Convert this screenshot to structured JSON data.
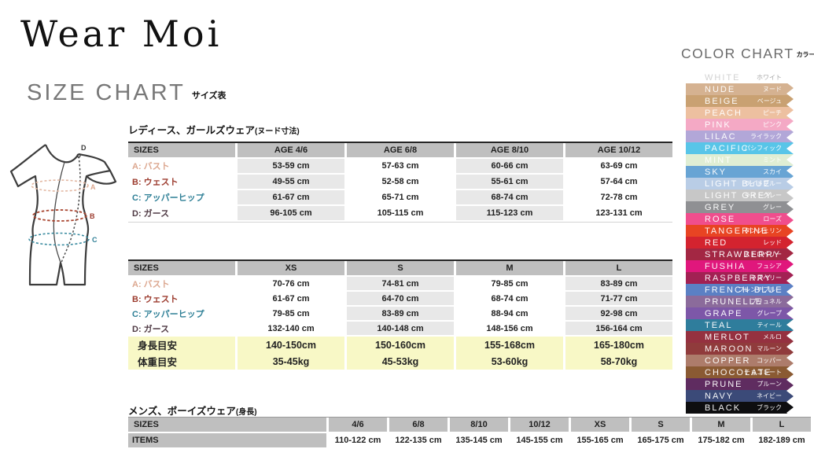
{
  "brand": {
    "logo": "Wear Moi",
    "title": "SIZE CHART",
    "title_jp": "サイズ表"
  },
  "sections": {
    "girls_title": "レディース、ガールズウェア",
    "girls_note": "(ヌード寸法)",
    "mens_title": "メンズ、ボーイズウェア",
    "mens_note": "(身長)"
  },
  "tables": {
    "girls": {
      "header": [
        "SIZES",
        "AGE 4/6",
        "AGE 6/8",
        "AGE 8/10",
        "AGE 10/12"
      ],
      "rows": [
        {
          "label": "A: バスト",
          "color": "#dca78f",
          "values": [
            "53-59 cm",
            "57-63 cm",
            "60-66 cm",
            "63-69 cm"
          ]
        },
        {
          "label": "B: ウェスト",
          "color": "#9c3b2e",
          "values": [
            "49-55 cm",
            "52-58 cm",
            "55-61 cm",
            "57-64 cm"
          ]
        },
        {
          "label": "C: アッパーヒップ",
          "color": "#2e7f96",
          "values": [
            "61-67 cm",
            "65-71 cm",
            "68-74 cm",
            "72-78 cm"
          ]
        },
        {
          "label": "D: ガース",
          "color": "#4f3a44",
          "values": [
            "96-105 cm",
            "105-115 cm",
            "115-123 cm",
            "123-131 cm"
          ]
        }
      ]
    },
    "adults": {
      "header": [
        "SIZES",
        "XS",
        "S",
        "M",
        "L"
      ],
      "rows": [
        {
          "label": "A: バスト",
          "color": "#dca78f",
          "values": [
            "70-76 cm",
            "74-81 cm",
            "79-85 cm",
            "83-89 cm"
          ]
        },
        {
          "label": "B: ウェスト",
          "color": "#9c3b2e",
          "values": [
            "61-67 cm",
            "64-70 cm",
            "68-74 cm",
            "71-77 cm"
          ]
        },
        {
          "label": "C: アッパーヒップ",
          "color": "#2e7f96",
          "values": [
            "79-85 cm",
            "83-89 cm",
            "88-94 cm",
            "92-98 cm"
          ]
        },
        {
          "label": "D: ガース",
          "color": "#4f3a44",
          "values": [
            "132-140 cm",
            "140-148 cm",
            "148-156 cm",
            "156-164 cm"
          ]
        }
      ],
      "highlight_rows": [
        {
          "label": "身長目安",
          "values": [
            "140-150cm",
            "150-160cm",
            "155-168cm",
            "165-180cm"
          ]
        },
        {
          "label": "体重目安",
          "values": [
            "35-45kg",
            "45-53kg",
            "53-60kg",
            "58-70kg"
          ]
        }
      ]
    },
    "mens": {
      "header": [
        "SIZES",
        "4/6",
        "6/8",
        "8/10",
        "10/12",
        "XS",
        "S",
        "M",
        "L"
      ],
      "rows": [
        {
          "label": "ITEMS",
          "values": [
            "110-122 cm",
            "122-135 cm",
            "135-145 cm",
            "145-155 cm",
            "155-165 cm",
            "165-175 cm",
            "175-182 cm",
            "182-189 cm"
          ]
        }
      ]
    }
  },
  "figure": {
    "markers": [
      {
        "label": "A",
        "color": "#dca78f"
      },
      {
        "label": "B",
        "color": "#9c3b2e"
      },
      {
        "label": "C",
        "color": "#2e7f96"
      },
      {
        "label": "D",
        "color": "#3a3a3a"
      }
    ]
  },
  "color_chart": {
    "title": "COLOR CHART",
    "title_jp": "カラー表",
    "colors": [
      {
        "name": "WHITE",
        "jp": "ホワイト",
        "hex": "#ffffff",
        "text": "#d2d2d2",
        "jptext": "#a9a9a9"
      },
      {
        "name": "NUDE",
        "jp": "ヌード",
        "hex": "#d5b291"
      },
      {
        "name": "BEIGE",
        "jp": "ベージュ",
        "hex": "#c9a172"
      },
      {
        "name": "PEACH",
        "jp": "ピーチ",
        "hex": "#edc0a0"
      },
      {
        "name": "PINK",
        "jp": "ピンク",
        "hex": "#f4a9c5"
      },
      {
        "name": "LILAC",
        "jp": "ライラック",
        "hex": "#b2a7d8"
      },
      {
        "name": "PACIFIC",
        "jp": "パシフィック",
        "hex": "#58c5e8"
      },
      {
        "name": "MINT",
        "jp": "ミント",
        "hex": "#e0eed4"
      },
      {
        "name": "SKY",
        "jp": "スカイ",
        "hex": "#68a4d4"
      },
      {
        "name": "LIGHT BLUE",
        "jp": "ライトブルー",
        "hex": "#b9cde6"
      },
      {
        "name": "LIGHT GREY",
        "jp": "ライトグレー",
        "hex": "#c7c7c7"
      },
      {
        "name": "GREY",
        "jp": "グレー",
        "hex": "#8f9093"
      },
      {
        "name": "ROSE",
        "jp": "ローズ",
        "hex": "#f04e8d"
      },
      {
        "name": "TANGERINE",
        "jp": "タンジェリン",
        "hex": "#e84423"
      },
      {
        "name": "RED",
        "jp": "レッド",
        "hex": "#d4232f"
      },
      {
        "name": "STRAWBERRY",
        "jp": "ストロベリー",
        "hex": "#a32743"
      },
      {
        "name": "FUSHIA",
        "jp": "フュシア",
        "hex": "#e0177c"
      },
      {
        "name": "RASPBERRY",
        "jp": "ラズベリー",
        "hex": "#a22153"
      },
      {
        "name": "FRENCH BLUE",
        "jp": "フレンチブルー",
        "hex": "#5b80c4"
      },
      {
        "name": "PRUNELLE",
        "jp": "プリュネル",
        "hex": "#8b6b9b"
      },
      {
        "name": "GRAPE",
        "jp": "グレープ",
        "hex": "#7d57a8"
      },
      {
        "name": "TEAL",
        "jp": "ティール",
        "hex": "#2f7d9c"
      },
      {
        "name": "MERLOT",
        "jp": "メルロ",
        "hex": "#953140"
      },
      {
        "name": "MAROON",
        "jp": "マルーン",
        "hex": "#903b3c"
      },
      {
        "name": "COPPER",
        "jp": "コッパー",
        "hex": "#ad7c6b"
      },
      {
        "name": "CHOCOLATE",
        "jp": "チョコレート",
        "hex": "#8a5a33"
      },
      {
        "name": "PRUNE",
        "jp": "プルーン",
        "hex": "#5f2c60"
      },
      {
        "name": "NAVY",
        "jp": "ネイビー",
        "hex": "#3b4a78"
      },
      {
        "name": "BLACK",
        "jp": "ブラック",
        "hex": "#0e0e10"
      }
    ]
  }
}
